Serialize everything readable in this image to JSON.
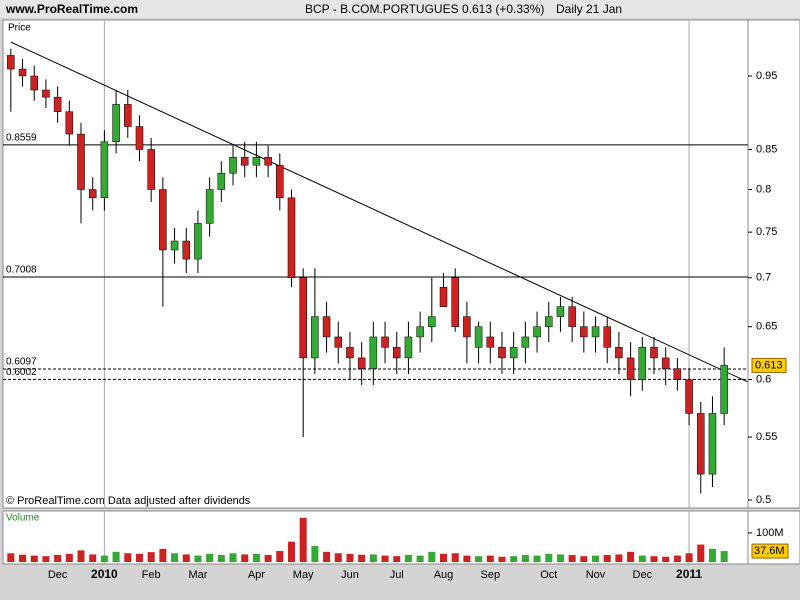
{
  "chart_data": {
    "type": "candlestick",
    "site": "www.ProRealTime.com",
    "symbol": "BCP - B.COM.PORTUGUES",
    "quote": "0.613 (+0.33%)",
    "period": "Daily 21 Jan",
    "ylabel": "Price",
    "source": "© ProRealTime.com  Data adjusted after dividends",
    "categories": [
      null,
      null,
      null,
      null,
      "Dec",
      null,
      null,
      null,
      "2010",
      null,
      null,
      null,
      "Feb",
      null,
      null,
      null,
      "Mar",
      null,
      null,
      null,
      null,
      "Apr",
      null,
      null,
      null,
      "May",
      null,
      null,
      null,
      "Jun",
      null,
      null,
      null,
      "Jul",
      null,
      null,
      null,
      "Aug",
      null,
      null,
      null,
      "Sep",
      null,
      null,
      null,
      null,
      "Oct",
      null,
      null,
      null,
      "Nov",
      null,
      null,
      null,
      "Dec",
      null,
      null,
      null,
      "2011",
      null,
      null,
      null
    ],
    "open": [
      0.98,
      0.96,
      0.95,
      0.93,
      0.92,
      0.9,
      0.87,
      0.8,
      0.79,
      0.86,
      0.91,
      0.88,
      0.85,
      0.8,
      0.73,
      0.74,
      0.72,
      0.76,
      0.8,
      0.82,
      0.84,
      0.83,
      0.84,
      0.83,
      0.79,
      0.7,
      0.62,
      0.66,
      0.64,
      0.63,
      0.62,
      0.61,
      0.64,
      0.63,
      0.62,
      0.64,
      0.65,
      0.69,
      0.7,
      0.66,
      0.63,
      0.64,
      0.63,
      0.62,
      0.63,
      0.64,
      0.65,
      0.66,
      0.67,
      0.65,
      0.64,
      0.65,
      0.63,
      0.62,
      0.6,
      0.63,
      0.62,
      0.61,
      0.6,
      0.57,
      0.52,
      0.57
    ],
    "high": [
      0.99,
      0.975,
      0.965,
      0.945,
      0.935,
      0.915,
      0.885,
      0.815,
      0.875,
      0.93,
      0.93,
      0.895,
      0.865,
      0.815,
      0.755,
      0.755,
      0.775,
      0.815,
      0.835,
      0.855,
      0.86,
      0.86,
      0.855,
      0.845,
      0.8,
      0.71,
      0.71,
      0.675,
      0.655,
      0.645,
      0.635,
      0.655,
      0.655,
      0.645,
      0.655,
      0.665,
      0.7,
      0.705,
      0.71,
      0.675,
      0.655,
      0.655,
      0.645,
      0.645,
      0.655,
      0.665,
      0.675,
      0.68,
      0.68,
      0.665,
      0.66,
      0.66,
      0.645,
      0.635,
      0.64,
      0.64,
      0.63,
      0.62,
      0.61,
      0.58,
      0.585,
      0.63
    ],
    "low": [
      0.9,
      0.935,
      0.915,
      0.905,
      0.885,
      0.855,
      0.76,
      0.775,
      0.775,
      0.845,
      0.865,
      0.835,
      0.785,
      0.67,
      0.715,
      0.705,
      0.705,
      0.745,
      0.785,
      0.805,
      0.815,
      0.815,
      0.815,
      0.775,
      0.69,
      0.55,
      0.605,
      0.625,
      0.615,
      0.6,
      0.595,
      0.595,
      0.615,
      0.605,
      0.605,
      0.625,
      0.635,
      0.675,
      0.645,
      0.615,
      0.615,
      0.615,
      0.605,
      0.605,
      0.615,
      0.625,
      0.635,
      0.645,
      0.635,
      0.625,
      0.625,
      0.615,
      0.605,
      0.585,
      0.59,
      0.605,
      0.595,
      0.59,
      0.56,
      0.505,
      0.51,
      0.56
    ],
    "close": [
      0.96,
      0.95,
      0.93,
      0.92,
      0.9,
      0.87,
      0.8,
      0.79,
      0.86,
      0.91,
      0.88,
      0.85,
      0.8,
      0.73,
      0.74,
      0.72,
      0.76,
      0.8,
      0.82,
      0.84,
      0.83,
      0.84,
      0.83,
      0.79,
      0.7,
      0.62,
      0.66,
      0.64,
      0.63,
      0.62,
      0.61,
      0.64,
      0.63,
      0.62,
      0.64,
      0.65,
      0.66,
      0.67,
      0.65,
      0.64,
      0.65,
      0.63,
      0.62,
      0.63,
      0.64,
      0.65,
      0.66,
      0.67,
      0.65,
      0.64,
      0.65,
      0.63,
      0.62,
      0.6,
      0.63,
      0.62,
      0.61,
      0.6,
      0.57,
      0.52,
      0.57,
      0.613
    ],
    "up_color": "#33aa33",
    "down_color": "#cc2222",
    "log_scale": true,
    "ylim": [
      0.494,
      1.034
    ],
    "yticks": [
      0.5,
      0.55,
      0.6,
      0.65,
      0.7,
      0.75,
      0.8,
      0.85,
      0.95
    ],
    "levels": [
      {
        "value": 0.8559,
        "dashed": false
      },
      {
        "value": 0.7008,
        "dashed": false
      },
      {
        "value": 0.6097,
        "dashed": true
      },
      {
        "value": 0.6002,
        "dashed": true
      }
    ],
    "trendline": {
      "start": {
        "index": 0,
        "value": 1.0
      },
      "end": {
        "index": 63,
        "value": 0.598
      }
    },
    "last_price": 0.613,
    "volume": {
      "label": "Volume",
      "values": [
        30000000,
        25000000,
        22000000,
        20000000,
        24000000,
        28000000,
        40000000,
        26000000,
        22000000,
        35000000,
        30000000,
        28000000,
        34000000,
        45000000,
        30000000,
        26000000,
        22000000,
        28000000,
        24000000,
        30000000,
        26000000,
        28000000,
        24000000,
        38000000,
        70000000,
        152000000,
        55000000,
        35000000,
        30000000,
        28000000,
        25000000,
        26000000,
        22000000,
        20000000,
        24000000,
        22000000,
        35000000,
        28000000,
        30000000,
        22000000,
        20000000,
        22000000,
        18000000,
        20000000,
        24000000,
        22000000,
        28000000,
        26000000,
        24000000,
        20000000,
        22000000,
        24000000,
        26000000,
        35000000,
        22000000,
        20000000,
        18000000,
        22000000,
        30000000,
        60000000,
        45000000,
        37600000
      ],
      "ylim": [
        0,
        172000000
      ],
      "yticks": [
        {
          "value": 100000000,
          "label": "100M"
        }
      ],
      "last_value": {
        "value": 37600000,
        "label": "37.6M"
      }
    }
  }
}
